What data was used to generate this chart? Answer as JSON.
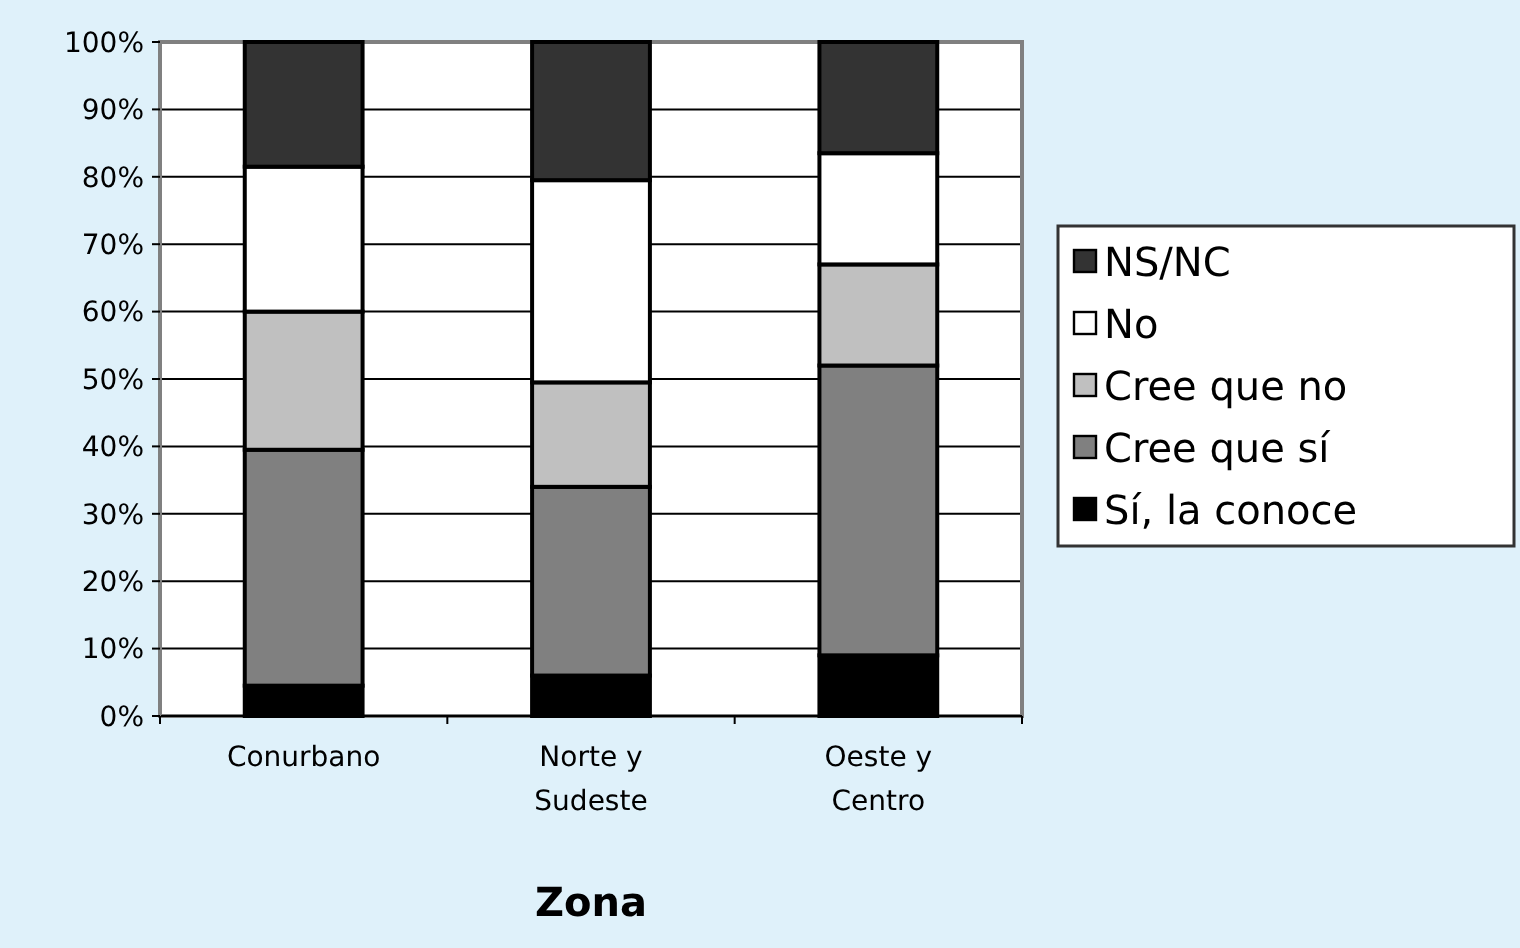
{
  "chart_data": {
    "type": "bar",
    "stacked": true,
    "xlabel": "Zona",
    "categories": [
      "Conurbano",
      "Norte y\nSudeste",
      "Oeste y\nCentro"
    ],
    "series": [
      {
        "name": "Sí, la conoce",
        "color": "#000000",
        "values": [
          4.5,
          6,
          9
        ]
      },
      {
        "name": "Cree que sí",
        "color": "#808080",
        "values": [
          35,
          28,
          43
        ]
      },
      {
        "name": "Cree que no",
        "color": "#c0c0c0",
        "values": [
          20.5,
          15.5,
          15
        ]
      },
      {
        "name": "No",
        "color": "#ffffff",
        "values": [
          21.5,
          30,
          16.5
        ]
      },
      {
        "name": "NS/NC",
        "color": "#333333",
        "values": [
          18.5,
          20.5,
          16.5
        ]
      }
    ],
    "ylim": [
      0,
      100
    ],
    "yticks": [
      {
        "value": 0,
        "label": "0%"
      },
      {
        "value": 10,
        "label": "10%"
      },
      {
        "value": 20,
        "label": "20%"
      },
      {
        "value": 30,
        "label": "30%"
      },
      {
        "value": 40,
        "label": "40%"
      },
      {
        "value": 50,
        "label": "50%"
      },
      {
        "value": 60,
        "label": "60%"
      },
      {
        "value": 70,
        "label": "70%"
      },
      {
        "value": 80,
        "label": "80%"
      },
      {
        "value": 90,
        "label": "90%"
      },
      {
        "value": 100,
        "label": "100%"
      }
    ],
    "grid": "y",
    "legend": "right"
  }
}
